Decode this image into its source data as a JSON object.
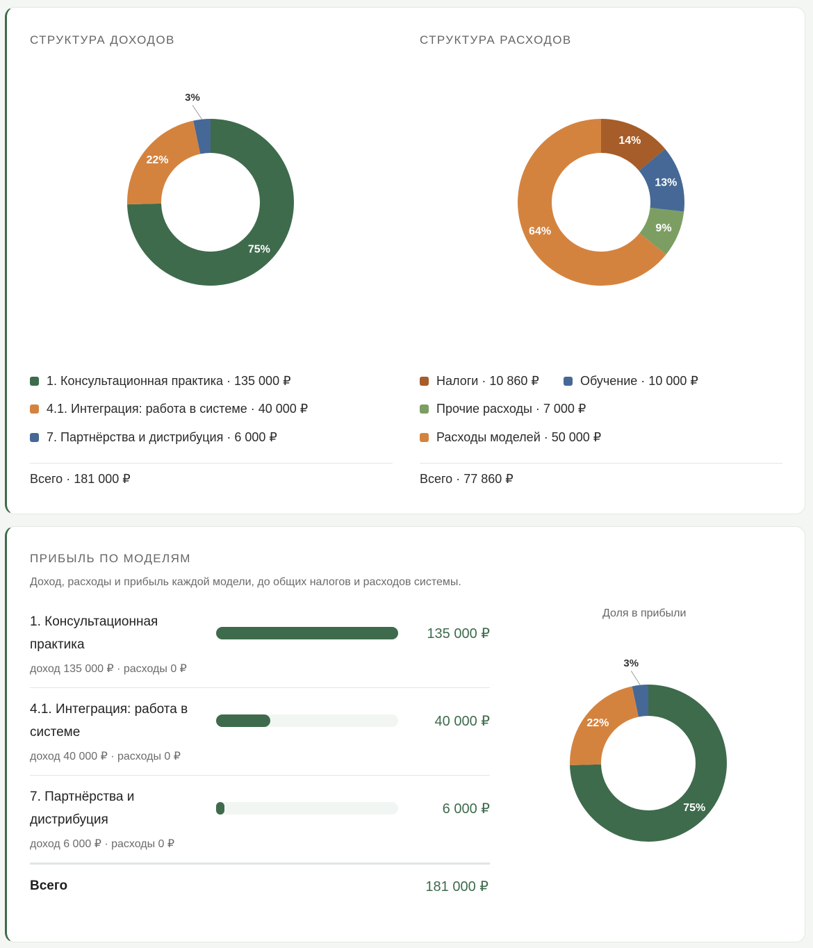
{
  "income": {
    "title": "СТРУКТУРА ДОХОДОВ",
    "chart_data": {
      "type": "pie",
      "title": "СТРУКТУРА ДОХОДОВ",
      "donut": true,
      "categories": [
        "1. Консультационная практика",
        "4.1. Интеграция: работа в системе",
        "7. Партнёрства и дистрибуция"
      ],
      "values": [
        135000,
        40000,
        6000
      ],
      "labels": [
        "75%",
        "22%",
        "3%"
      ],
      "colors": [
        "#3e6b4c",
        "#d4833f",
        "#466896"
      ]
    },
    "legend": [
      {
        "text": "1. Консультационная практика · 135 000 ₽",
        "color": "#3e6b4c"
      },
      {
        "text": "4.1. Интеграция: работа в системе · 40 000 ₽",
        "color": "#d4833f"
      },
      {
        "text": "7. Партнёрства и дистрибуция · 6 000 ₽",
        "color": "#466896"
      }
    ],
    "total": "Всего · 181 000 ₽"
  },
  "expenses": {
    "title": "СТРУКТУРА РАСХОДОВ",
    "chart_data": {
      "type": "pie",
      "title": "СТРУКТУРА РАСХОДОВ",
      "donut": true,
      "categories": [
        "Налоги",
        "Обучение",
        "Прочие расходы",
        "Расходы моделей"
      ],
      "values": [
        10860,
        10000,
        7000,
        50000
      ],
      "labels": [
        "14%",
        "13%",
        "9%",
        "64%"
      ],
      "colors": [
        "#a65d29",
        "#466896",
        "#7c9e62",
        "#d4833f"
      ]
    },
    "legend": [
      {
        "text": "Налоги · 10 860 ₽",
        "color": "#a65d29"
      },
      {
        "text": "Обучение · 10 000 ₽",
        "color": "#466896"
      },
      {
        "text": "Прочие расходы · 7 000 ₽",
        "color": "#7c9e62"
      },
      {
        "text": "Расходы моделей · 50 000 ₽",
        "color": "#d4833f"
      }
    ],
    "total": "Всего · 77 860 ₽"
  },
  "profit": {
    "title": "ПРИБЫЛЬ ПО МОДЕЛЯМ",
    "subtitle": "Доход, расходы и прибыль каждой модели, до общих налогов и расходов системы.",
    "models": [
      {
        "name": "1. Консультационная практика",
        "sub": "доход 135 000 ₽ · расходы 0 ₽",
        "value": 135000,
        "value_label": "135 000 ₽"
      },
      {
        "name": "4.1. Интеграция: работа в системе",
        "sub": "доход 40 000 ₽ · расходы 0 ₽",
        "value": 40000,
        "value_label": "40 000 ₽"
      },
      {
        "name": "7. Партнёрства и дистрибуция",
        "sub": "доход 6 000 ₽ · расходы 0 ₽",
        "value": 6000,
        "value_label": "6 000 ₽"
      }
    ],
    "total_label": "Всего",
    "total_value": "181 000 ₽",
    "share_title": "Доля в прибыли",
    "chart_data": {
      "type": "pie",
      "title": "Доля в прибыли",
      "donut": true,
      "categories": [
        "1. Консультационная практика",
        "4.1. Интеграция: работа в системе",
        "7. Партнёрства и дистрибуция"
      ],
      "values": [
        135000,
        40000,
        6000
      ],
      "labels": [
        "75%",
        "22%",
        "3%"
      ],
      "colors": [
        "#3e6b4c",
        "#d4833f",
        "#466896"
      ]
    }
  }
}
